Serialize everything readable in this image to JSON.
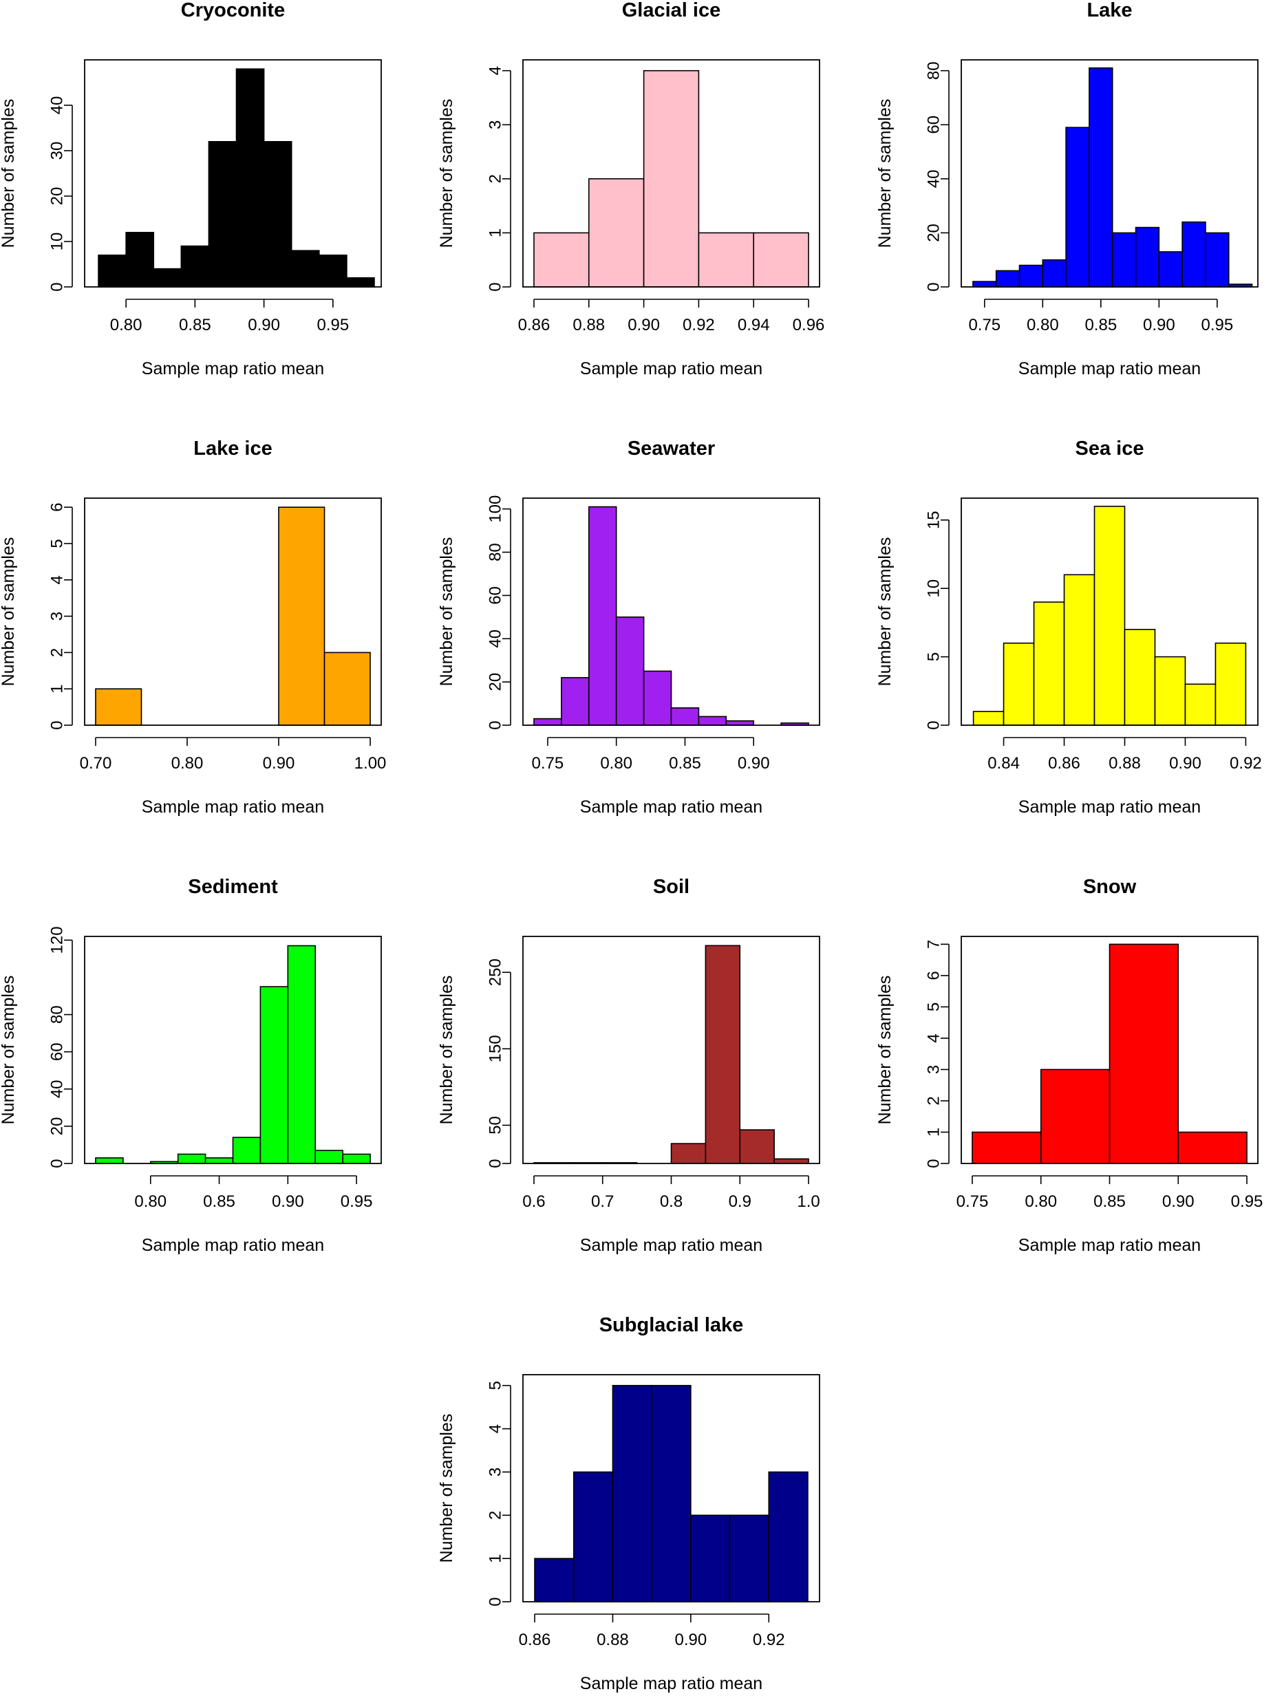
{
  "colors": {
    "axis": "#000000",
    "bar_edge": "#000000",
    "background": "#ffffff"
  },
  "chart_data": [
    {
      "type": "bar",
      "title": "Cryoconite",
      "xlabel": "Sample map ratio mean",
      "ylabel": "Number of samples",
      "color": "#000000",
      "bin_edges": [
        0.78,
        0.8,
        0.82,
        0.84,
        0.86,
        0.88,
        0.9,
        0.92,
        0.94,
        0.96,
        0.98
      ],
      "values": [
        7,
        12,
        4,
        9,
        32,
        48,
        32,
        8,
        7,
        2
      ],
      "xlim": [
        0.77,
        0.985
      ],
      "ylim": [
        0,
        50
      ],
      "xticks": [
        0.8,
        0.85,
        0.9,
        0.95
      ],
      "xtick_labels": [
        "0.80",
        "0.85",
        "0.90",
        "0.95"
      ],
      "yticks": [
        0,
        10,
        20,
        30,
        40
      ],
      "ytick_labels": [
        "0",
        "10",
        "20",
        "30",
        "40"
      ]
    },
    {
      "type": "bar",
      "title": "Glacial ice",
      "xlabel": "Sample map ratio mean",
      "ylabel": "Number of samples",
      "color": "#ffc0cb",
      "bin_edges": [
        0.86,
        0.88,
        0.9,
        0.92,
        0.94,
        0.96
      ],
      "values": [
        1,
        2,
        4,
        1,
        1
      ],
      "xlim": [
        0.856,
        0.964
      ],
      "ylim": [
        0,
        4.2
      ],
      "xticks": [
        0.86,
        0.88,
        0.9,
        0.92,
        0.94,
        0.96
      ],
      "xtick_labels": [
        "0.86",
        "0.88",
        "0.90",
        "0.92",
        "0.94",
        "0.96"
      ],
      "yticks": [
        0,
        1,
        2,
        3,
        4
      ],
      "ytick_labels": [
        "0",
        "1",
        "2",
        "3",
        "4"
      ]
    },
    {
      "type": "bar",
      "title": "Lake",
      "xlabel": "Sample map ratio mean",
      "ylabel": "Number of samples",
      "color": "#0000ff",
      "bin_edges": [
        0.74,
        0.76,
        0.78,
        0.8,
        0.82,
        0.84,
        0.86,
        0.88,
        0.9,
        0.92,
        0.94,
        0.96,
        0.98
      ],
      "values": [
        2,
        6,
        8,
        10,
        59,
        81,
        20,
        22,
        13,
        24,
        20,
        1
      ],
      "xlim": [
        0.73,
        0.985
      ],
      "ylim": [
        0,
        84
      ],
      "xticks": [
        0.75,
        0.8,
        0.85,
        0.9,
        0.95
      ],
      "xtick_labels": [
        "0.75",
        "0.80",
        "0.85",
        "0.90",
        "0.95"
      ],
      "yticks": [
        0,
        20,
        40,
        60,
        80
      ],
      "ytick_labels": [
        "0",
        "20",
        "40",
        "60",
        "80"
      ]
    },
    {
      "type": "bar",
      "title": "Lake ice",
      "xlabel": "Sample map ratio mean",
      "ylabel": "Number of samples",
      "color": "#ffa500",
      "bin_edges": [
        0.7,
        0.75,
        0.8,
        0.85,
        0.9,
        0.95,
        1.0
      ],
      "values": [
        1,
        0,
        0,
        0,
        6,
        2
      ],
      "xlim": [
        0.688,
        1.012
      ],
      "ylim": [
        0,
        6.25
      ],
      "xticks": [
        0.7,
        0.8,
        0.9,
        1.0
      ],
      "xtick_labels": [
        "0.70",
        "0.80",
        "0.90",
        "1.00"
      ],
      "yticks": [
        0,
        1,
        2,
        3,
        4,
        5,
        6
      ],
      "ytick_labels": [
        "0",
        "1",
        "2",
        "3",
        "4",
        "5",
        "6"
      ]
    },
    {
      "type": "bar",
      "title": "Seawater",
      "xlabel": "Sample map ratio mean",
      "ylabel": "Number of samples",
      "color": "#a020f0",
      "bin_edges": [
        0.74,
        0.76,
        0.78,
        0.8,
        0.82,
        0.84,
        0.86,
        0.88,
        0.9,
        0.92,
        0.94
      ],
      "values": [
        3,
        22,
        101,
        50,
        25,
        8,
        4,
        2,
        0,
        1
      ],
      "xlim": [
        0.732,
        0.948
      ],
      "ylim": [
        0,
        105
      ],
      "xticks": [
        0.75,
        0.8,
        0.85,
        0.9
      ],
      "xtick_labels": [
        "0.75",
        "0.80",
        "0.85",
        "0.90"
      ],
      "yticks": [
        0,
        20,
        40,
        60,
        80,
        100
      ],
      "ytick_labels": [
        "0",
        "20",
        "40",
        "60",
        "80",
        "100"
      ]
    },
    {
      "type": "bar",
      "title": "Sea ice",
      "xlabel": "Sample map ratio mean",
      "ylabel": "Number of samples",
      "color": "#ffff00",
      "bin_edges": [
        0.83,
        0.84,
        0.85,
        0.86,
        0.87,
        0.88,
        0.89,
        0.9,
        0.91,
        0.92
      ],
      "values": [
        1,
        6,
        9,
        11,
        16,
        7,
        5,
        3,
        6
      ],
      "xlim": [
        0.826,
        0.924
      ],
      "ylim": [
        0,
        16.6
      ],
      "xticks": [
        0.84,
        0.86,
        0.88,
        0.9,
        0.92
      ],
      "xtick_labels": [
        "0.84",
        "0.86",
        "0.88",
        "0.90",
        "0.92"
      ],
      "yticks": [
        0,
        5,
        10,
        15
      ],
      "ytick_labels": [
        "0",
        "5",
        "10",
        "15"
      ]
    },
    {
      "type": "bar",
      "title": "Sediment",
      "xlabel": "Sample map ratio mean",
      "ylabel": "Number of samples",
      "color": "#00ff00",
      "bin_edges": [
        0.76,
        0.78,
        0.8,
        0.82,
        0.84,
        0.86,
        0.88,
        0.9,
        0.92,
        0.94,
        0.96
      ],
      "values": [
        3,
        0,
        1,
        5,
        3,
        14,
        95,
        117,
        7,
        5
      ],
      "xlim": [
        0.752,
        0.968
      ],
      "ylim": [
        0,
        122
      ],
      "xticks": [
        0.8,
        0.85,
        0.9,
        0.95
      ],
      "xtick_labels": [
        "0.80",
        "0.85",
        "0.90",
        "0.95"
      ],
      "yticks": [
        0,
        20,
        40,
        60,
        80,
        120
      ],
      "ytick_labels": [
        "0",
        "20",
        "40",
        "60",
        "80",
        "120"
      ]
    },
    {
      "type": "bar",
      "title": "Soil",
      "xlabel": "Sample map ratio mean",
      "ylabel": "Number of samples",
      "color": "#a52a2a",
      "bin_edges": [
        0.6,
        0.65,
        0.7,
        0.75,
        0.8,
        0.85,
        0.9,
        0.95,
        1.0
      ],
      "values": [
        1,
        1,
        1,
        0,
        26,
        285,
        44,
        6
      ],
      "xlim": [
        0.584,
        1.016
      ],
      "ylim": [
        0,
        297
      ],
      "xticks": [
        0.6,
        0.7,
        0.8,
        0.9,
        1.0
      ],
      "xtick_labels": [
        "0.6",
        "0.7",
        "0.8",
        "0.9",
        "1.0"
      ],
      "yticks": [
        0,
        50,
        150,
        250
      ],
      "ytick_labels": [
        "0",
        "50",
        "150",
        "250"
      ]
    },
    {
      "type": "bar",
      "title": "Snow",
      "xlabel": "Sample map ratio mean",
      "ylabel": "Number of samples",
      "color": "#ff0000",
      "bin_edges": [
        0.75,
        0.8,
        0.85,
        0.9,
        0.95
      ],
      "values": [
        1,
        3,
        7,
        1
      ],
      "xlim": [
        0.742,
        0.958
      ],
      "ylim": [
        0,
        7.25
      ],
      "xticks": [
        0.75,
        0.8,
        0.85,
        0.9,
        0.95
      ],
      "xtick_labels": [
        "0.75",
        "0.80",
        "0.85",
        "0.90",
        "0.95"
      ],
      "yticks": [
        0,
        1,
        2,
        3,
        4,
        5,
        6,
        7
      ],
      "ytick_labels": [
        "0",
        "1",
        "2",
        "3",
        "4",
        "5",
        "6",
        "7"
      ]
    },
    {
      "type": "bar",
      "title": "Subglacial lake",
      "xlabel": "Sample map ratio mean",
      "ylabel": "Number of samples",
      "color": "#00008b",
      "bin_edges": [
        0.86,
        0.87,
        0.88,
        0.89,
        0.9,
        0.91,
        0.92,
        0.93
      ],
      "values": [
        1,
        3,
        5,
        5,
        2,
        2,
        3
      ],
      "xlim": [
        0.857,
        0.933
      ],
      "ylim": [
        0,
        5.25
      ],
      "xticks": [
        0.86,
        0.88,
        0.9,
        0.92
      ],
      "xtick_labels": [
        "0.86",
        "0.88",
        "0.90",
        "0.92"
      ],
      "yticks": [
        0,
        1,
        2,
        3,
        4,
        5
      ],
      "ytick_labels": [
        "0",
        "1",
        "2",
        "3",
        "4",
        "5"
      ]
    }
  ]
}
